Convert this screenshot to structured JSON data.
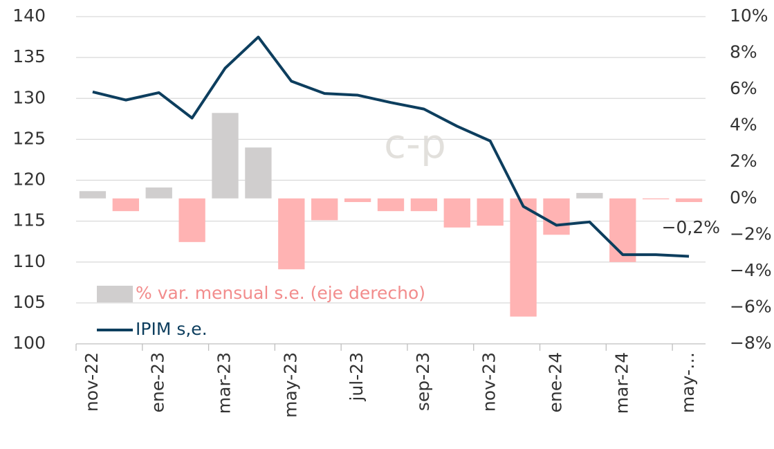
{
  "chart_data": {
    "type": "bar_line",
    "watermark": "c-p",
    "categories": [
      "nov-22",
      null,
      "ene-23",
      null,
      "mar-23",
      null,
      "may-23",
      null,
      "jul-23",
      null,
      "sep-23",
      null,
      "nov-23",
      null,
      "ene-24",
      null,
      "mar-24",
      null,
      "may-…"
    ],
    "series": [
      {
        "name": "% var. mensual s.e. (eje derecho)",
        "type": "bar",
        "axis": "y2",
        "color": "#d0cece",
        "negative_color": "#ffb3b3",
        "values": [
          0.4,
          -0.7,
          0.6,
          -2.4,
          4.7,
          2.8,
          -3.9,
          -1.2,
          -0.2,
          -0.7,
          -0.7,
          -1.6,
          -1.5,
          -6.5,
          -2.0,
          0.3,
          -3.5,
          -0.05,
          -0.2
        ],
        "value_labels": [
          null,
          null,
          null,
          null,
          null,
          null,
          null,
          null,
          null,
          null,
          null,
          null,
          null,
          null,
          null,
          null,
          null,
          null,
          "−0,2%"
        ]
      },
      {
        "name": "IPIM s,e.",
        "type": "line",
        "color": "#0d3e5e",
        "values": [
          130.8,
          129.8,
          130.7,
          127.6,
          133.7,
          137.5,
          132.1,
          130.6,
          130.4,
          129.5,
          128.7,
          126.6,
          124.8,
          116.8,
          114.5,
          114.9,
          110.9,
          110.9,
          110.7
        ]
      }
    ],
    "ylim": [
      100,
      140
    ],
    "yticks": [
      100,
      105,
      110,
      115,
      120,
      125,
      130,
      135,
      140
    ],
    "y2lim": [
      -8,
      10
    ],
    "y2ticks": [
      {
        "value": -8,
        "label": "−8%"
      },
      {
        "value": -6,
        "label": "−6%"
      },
      {
        "value": -4,
        "label": "−4%"
      },
      {
        "value": -2,
        "label": "−2%"
      },
      {
        "value": 0,
        "label": "0%"
      },
      {
        "value": 2,
        "label": "2%"
      },
      {
        "value": 4,
        "label": "4%"
      },
      {
        "value": 6,
        "label": "6%"
      },
      {
        "value": 8,
        "label": "8%"
      },
      {
        "value": 10,
        "label": "10%"
      }
    ],
    "grid": true
  }
}
